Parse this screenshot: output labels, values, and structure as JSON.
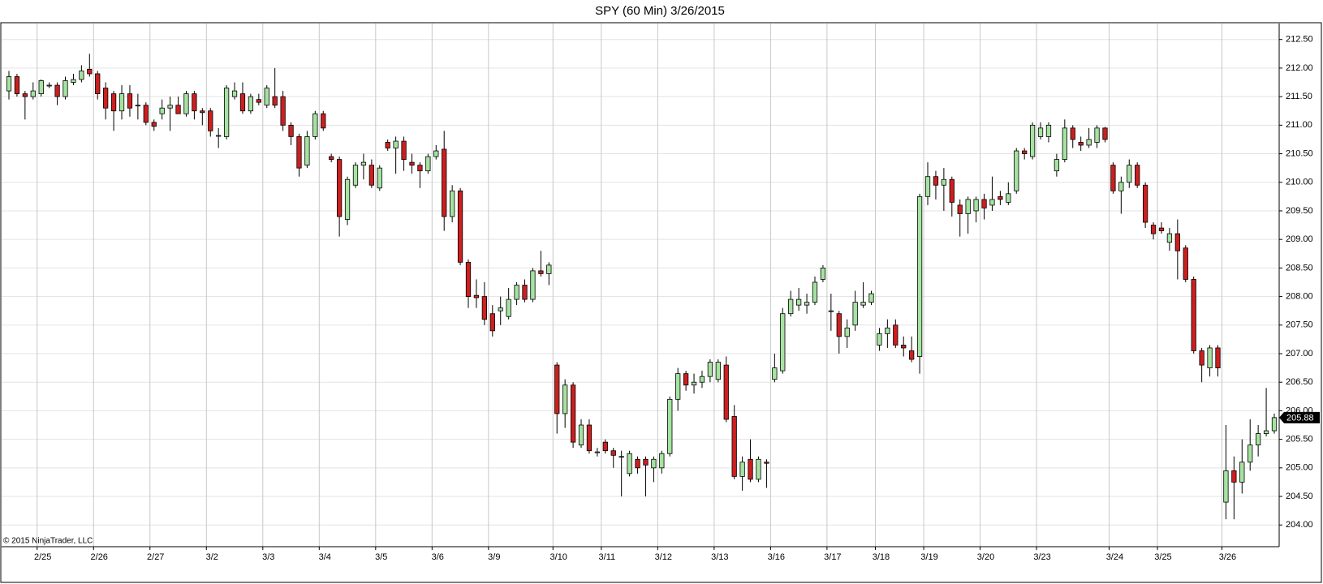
{
  "chart_data": {
    "type": "candlestick",
    "title": "SPY (60 Min)  3/26/2015",
    "footer": "© 2015 NinjaTrader, LLC",
    "categories": [
      null,
      null,
      null,
      null,
      "2/25",
      null,
      null,
      null,
      null,
      null,
      null,
      "2/26",
      null,
      null,
      null,
      null,
      null,
      null,
      "2/27",
      null,
      null,
      null,
      null,
      null,
      null,
      "3/2",
      null,
      null,
      null,
      null,
      null,
      null,
      "3/3",
      null,
      null,
      null,
      null,
      null,
      null,
      "3/4",
      null,
      null,
      null,
      null,
      null,
      null,
      "3/5",
      null,
      null,
      null,
      null,
      null,
      null,
      "3/6",
      null,
      null,
      null,
      null,
      null,
      null,
      "3/9",
      null,
      null,
      null,
      null,
      null,
      null,
      null,
      "3/10",
      null,
      null,
      null,
      null,
      null,
      "3/11",
      null,
      null,
      null,
      null,
      null,
      null,
      "3/12",
      null,
      null,
      null,
      null,
      null,
      null,
      "3/13",
      null,
      null,
      null,
      null,
      null,
      null,
      "3/16",
      null,
      null,
      null,
      null,
      null,
      null,
      "3/17",
      null,
      null,
      null,
      null,
      null,
      "3/18",
      null,
      null,
      null,
      null,
      null,
      "3/19",
      null,
      null,
      null,
      null,
      null,
      null,
      "3/20",
      null,
      null,
      null,
      null,
      null,
      null,
      "3/23",
      null,
      null,
      null,
      null,
      null,
      null,
      null,
      null,
      "3/24",
      null,
      null,
      null,
      null,
      null,
      "3/25",
      null,
      null,
      null,
      null,
      null,
      null,
      null,
      "3/26",
      null,
      null,
      null,
      null,
      null,
      null
    ],
    "open": [
      211.6,
      211.85,
      211.55,
      211.5,
      211.55,
      211.7,
      211.7,
      211.5,
      211.75,
      211.8,
      211.98,
      211.9,
      211.65,
      211.55,
      211.25,
      211.55,
      211.35,
      211.35,
      211.05,
      211.2,
      211.3,
      211.35,
      211.2,
      211.55,
      211.25,
      211.25,
      210.82,
      210.8,
      211.5,
      211.55,
      211.25,
      211.45,
      211.35,
      211.5,
      211.5,
      211.0,
      210.8,
      210.3,
      210.8,
      211.2,
      210.45,
      210.4,
      209.35,
      209.95,
      210.3,
      210.3,
      209.9,
      210.7,
      210.6,
      210.72,
      210.35,
      210.3,
      210.2,
      210.45,
      210.58,
      209.4,
      209.85,
      208.6,
      208.02,
      208.0,
      207.7,
      207.75,
      207.65,
      207.95,
      208.2,
      207.95,
      208.45,
      208.4,
      206.8,
      205.95,
      206.45,
      205.4,
      205.75,
      205.28,
      205.45,
      205.3,
      205.2,
      204.9,
      205.15,
      205.15,
      205.0,
      205.0,
      205.25,
      206.2,
      206.65,
      206.45,
      206.5,
      206.6,
      206.55,
      206.8,
      205.9,
      204.85,
      205.15,
      204.8,
      205.1,
      206.55,
      206.7,
      207.7,
      207.85,
      207.85,
      207.9,
      208.3,
      207.75,
      207.7,
      207.3,
      207.5,
      207.85,
      207.9,
      207.15,
      207.35,
      207.5,
      207.15,
      207.05,
      206.95,
      209.75,
      210.1,
      209.95,
      210.05,
      209.6,
      209.45,
      209.5,
      209.7,
      209.6,
      209.75,
      209.65,
      209.85,
      210.55,
      210.45,
      210.8,
      210.8,
      210.2,
      210.4,
      210.95,
      210.7,
      210.65,
      210.7,
      210.95,
      210.3,
      209.85,
      210.0,
      210.3,
      209.95,
      209.25,
      209.2,
      208.95,
      209.1,
      208.85,
      208.3,
      207.05,
      206.75,
      207.1,
      204.4,
      204.95,
      204.75,
      205.1,
      205.4,
      205.6,
      205.65
    ],
    "high": [
      211.95,
      211.9,
      211.6,
      211.75,
      211.8,
      211.75,
      211.75,
      211.85,
      211.9,
      212.05,
      212.25,
      211.95,
      211.75,
      211.6,
      211.7,
      211.7,
      211.55,
      211.4,
      211.1,
      211.45,
      211.5,
      211.5,
      211.6,
      211.6,
      211.3,
      211.3,
      210.95,
      211.7,
      211.75,
      211.75,
      211.55,
      211.55,
      211.7,
      212.0,
      211.6,
      211.05,
      210.85,
      210.9,
      211.25,
      211.25,
      210.5,
      210.45,
      210.1,
      210.35,
      210.5,
      210.4,
      210.3,
      210.75,
      210.8,
      210.8,
      210.5,
      210.35,
      210.5,
      210.65,
      210.9,
      209.95,
      209.9,
      208.65,
      208.3,
      208.25,
      207.85,
      208.0,
      208.15,
      208.25,
      208.3,
      208.5,
      208.8,
      208.6,
      206.85,
      206.55,
      206.5,
      205.85,
      205.85,
      205.35,
      205.5,
      205.35,
      205.3,
      205.3,
      205.2,
      205.2,
      205.2,
      205.3,
      206.25,
      206.75,
      206.7,
      206.65,
      206.7,
      206.9,
      206.9,
      206.95,
      206.1,
      205.2,
      205.5,
      205.2,
      205.15,
      207.0,
      207.8,
      208.1,
      208.15,
      208.05,
      208.35,
      208.55,
      208.05,
      207.75,
      207.6,
      208.1,
      208.25,
      208.1,
      207.45,
      207.6,
      207.6,
      207.3,
      207.3,
      209.8,
      210.35,
      210.2,
      210.25,
      210.1,
      209.7,
      209.75,
      209.75,
      209.8,
      210.1,
      209.85,
      210.0,
      210.6,
      210.6,
      211.05,
      211.05,
      211.05,
      210.5,
      211.1,
      211.0,
      210.8,
      210.95,
      211.0,
      210.97,
      210.35,
      210.1,
      210.4,
      210.35,
      210.0,
      209.3,
      209.3,
      209.2,
      209.35,
      208.9,
      208.35,
      207.1,
      207.15,
      207.15,
      205.75,
      205.2,
      205.5,
      205.85,
      205.75,
      206.4,
      205.95
    ],
    "low": [
      211.45,
      211.5,
      211.1,
      211.45,
      211.5,
      211.65,
      211.35,
      211.45,
      211.7,
      211.75,
      211.85,
      211.45,
      211.1,
      210.9,
      211.1,
      211.15,
      211.1,
      211.0,
      210.9,
      211.1,
      210.9,
      211.2,
      211.15,
      211.1,
      211.0,
      210.8,
      210.6,
      210.75,
      211.45,
      211.2,
      211.2,
      211.35,
      211.3,
      211.3,
      210.9,
      210.65,
      210.1,
      210.25,
      210.75,
      210.9,
      210.35,
      209.05,
      209.25,
      209.9,
      210.05,
      209.9,
      209.85,
      210.55,
      210.15,
      210.2,
      210.15,
      209.9,
      210.15,
      210.4,
      209.15,
      209.3,
      208.55,
      207.8,
      207.8,
      207.5,
      207.3,
      207.5,
      207.6,
      207.85,
      207.9,
      207.9,
      208.35,
      208.2,
      205.6,
      205.7,
      205.35,
      205.35,
      205.25,
      205.2,
      205.25,
      205.0,
      204.5,
      204.85,
      204.9,
      204.5,
      204.75,
      204.9,
      205.2,
      206.0,
      206.35,
      206.3,
      206.4,
      206.5,
      206.5,
      205.8,
      204.8,
      204.6,
      204.75,
      204.75,
      204.65,
      206.5,
      206.65,
      207.65,
      207.75,
      207.7,
      207.85,
      208.25,
      207.4,
      207.0,
      207.1,
      207.4,
      207.8,
      207.85,
      207.05,
      207.1,
      207.1,
      206.95,
      206.85,
      206.65,
      209.6,
      209.7,
      209.5,
      209.4,
      209.05,
      209.1,
      209.3,
      209.35,
      209.5,
      209.6,
      209.6,
      209.8,
      210.4,
      210.4,
      210.75,
      210.7,
      210.1,
      210.35,
      210.6,
      210.55,
      210.6,
      210.6,
      210.7,
      209.8,
      209.45,
      209.9,
      209.9,
      209.2,
      209.0,
      209.1,
      208.8,
      208.3,
      208.25,
      207.0,
      206.5,
      206.6,
      206.6,
      204.1,
      204.1,
      204.55,
      204.95,
      205.2,
      205.55,
      205.6
    ],
    "close": [
      211.85,
      211.55,
      211.5,
      211.6,
      211.78,
      211.7,
      211.5,
      211.78,
      211.8,
      211.95,
      211.9,
      211.55,
      211.3,
      211.25,
      211.55,
      211.3,
      211.35,
      211.05,
      210.98,
      211.3,
      211.35,
      211.2,
      211.55,
      211.25,
      211.22,
      210.9,
      210.82,
      211.65,
      211.6,
      211.25,
      211.5,
      211.4,
      211.65,
      211.35,
      211.0,
      210.8,
      210.25,
      210.8,
      211.2,
      210.95,
      210.4,
      209.4,
      210.05,
      210.3,
      210.35,
      209.95,
      210.25,
      210.6,
      210.72,
      210.4,
      210.3,
      210.2,
      210.45,
      210.55,
      209.4,
      209.85,
      208.6,
      208.0,
      207.98,
      207.6,
      207.4,
      207.8,
      207.95,
      208.2,
      207.95,
      208.45,
      208.4,
      208.55,
      205.95,
      206.45,
      205.45,
      205.75,
      205.3,
      205.28,
      205.3,
      205.22,
      205.2,
      205.25,
      205.0,
      205.05,
      205.15,
      205.25,
      206.2,
      206.65,
      206.45,
      206.5,
      206.6,
      206.85,
      206.85,
      205.85,
      204.85,
      205.1,
      204.8,
      205.15,
      205.08,
      206.75,
      207.7,
      207.95,
      207.95,
      207.9,
      208.25,
      208.5,
      207.75,
      207.3,
      207.45,
      207.9,
      207.9,
      208.05,
      207.35,
      207.45,
      207.15,
      207.1,
      206.9,
      209.75,
      210.1,
      209.95,
      210.05,
      209.65,
      209.45,
      209.7,
      209.7,
      209.55,
      209.7,
      209.7,
      209.8,
      210.55,
      210.5,
      211.0,
      210.95,
      211.0,
      210.4,
      210.95,
      210.75,
      210.65,
      210.75,
      210.95,
      210.75,
      209.85,
      210.0,
      210.3,
      209.95,
      209.3,
      209.1,
      209.15,
      209.1,
      208.8,
      208.3,
      207.05,
      206.8,
      207.1,
      206.75,
      204.95,
      204.75,
      205.1,
      205.4,
      205.6,
      205.65,
      205.88
    ],
    "up_color": "#a6e3a1",
    "down_color": "#cc1f1f",
    "ylim": [
      203.62,
      212.78
    ],
    "yticks": [
      {
        "value": 204.0,
        "label": "204.00"
      },
      {
        "value": 204.5,
        "label": "204.50"
      },
      {
        "value": 205.0,
        "label": "205.00"
      },
      {
        "value": 205.5,
        "label": "205.50"
      },
      {
        "value": 206.0,
        "label": "206.00"
      },
      {
        "value": 206.5,
        "label": "206.50"
      },
      {
        "value": 207.0,
        "label": "207.00"
      },
      {
        "value": 207.5,
        "label": "207.50"
      },
      {
        "value": 208.0,
        "label": "208.00"
      },
      {
        "value": 208.5,
        "label": "208.50"
      },
      {
        "value": 209.0,
        "label": "209.00"
      },
      {
        "value": 209.5,
        "label": "209.50"
      },
      {
        "value": 210.0,
        "label": "210.00"
      },
      {
        "value": 210.5,
        "label": "210.50"
      },
      {
        "value": 211.0,
        "label": "211.00"
      },
      {
        "value": 211.5,
        "label": "211.50"
      },
      {
        "value": 212.0,
        "label": "212.00"
      },
      {
        "value": 212.5,
        "label": "212.50"
      }
    ],
    "grid": true
  }
}
